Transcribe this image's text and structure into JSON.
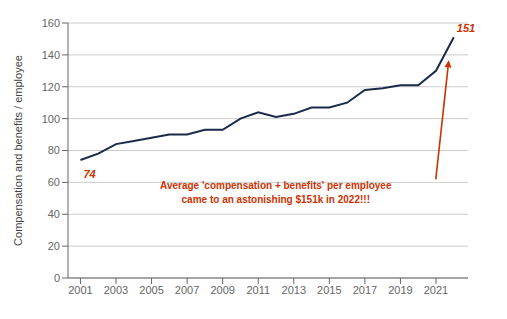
{
  "chart_data": {
    "type": "line",
    "x": [
      2001,
      2002,
      2003,
      2004,
      2005,
      2006,
      2007,
      2008,
      2009,
      2010,
      2011,
      2012,
      2013,
      2014,
      2015,
      2016,
      2017,
      2018,
      2019,
      2020,
      2021,
      2022
    ],
    "values": [
      74,
      78,
      84,
      86,
      88,
      90,
      90,
      93,
      93,
      100,
      104,
      101,
      103,
      107,
      107,
      110,
      118,
      119,
      121,
      121,
      130,
      151
    ],
    "color": "#1a2a4a",
    "ylabel": "Compensation and benefits / employee",
    "xlim": [
      2000.3,
      2022.8
    ],
    "ylim": [
      0,
      160
    ],
    "yticks": [
      0,
      20,
      40,
      60,
      80,
      100,
      120,
      140,
      160
    ],
    "xticks": [
      2001,
      2003,
      2005,
      2007,
      2009,
      2011,
      2013,
      2015,
      2017,
      2019,
      2021
    ],
    "grid": true,
    "annotations": [
      {
        "text": "74",
        "color": "#cc3300"
      },
      {
        "text": "151",
        "color": "#cc3300"
      },
      {
        "text": "Average 'compensation + benefits' per employee",
        "color": "#cc3300"
      },
      {
        "text": "came to an astonishing $151k in 2022!!!",
        "color": "#cc3300"
      }
    ]
  }
}
